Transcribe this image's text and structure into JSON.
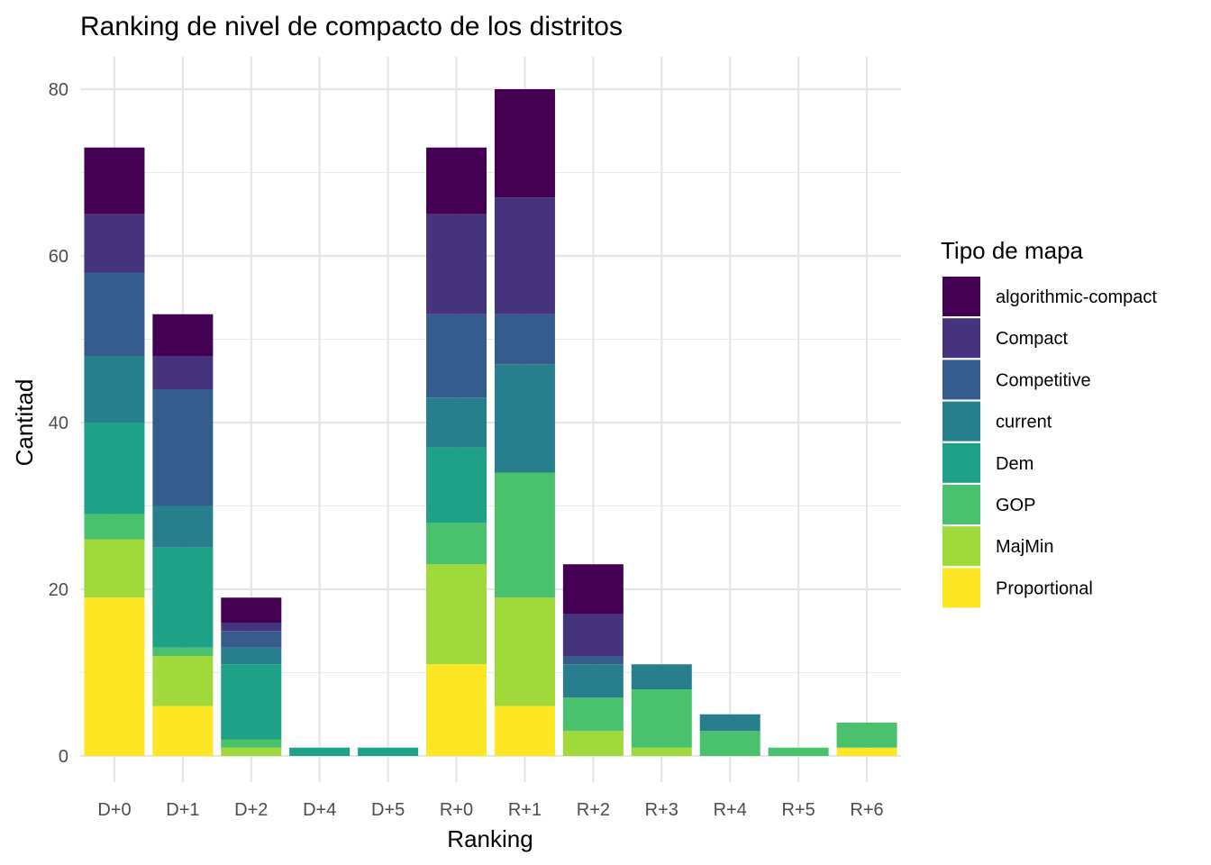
{
  "chart_data": {
    "type": "bar",
    "stacked": true,
    "title": "Ranking de nivel de compacto de los distritos",
    "xlabel": "Ranking",
    "ylabel": "Cantitad",
    "ylim": [
      0,
      84
    ],
    "yticks": [
      0,
      20,
      40,
      60,
      80
    ],
    "grid": true,
    "legend_position": "right",
    "legend_title": "Tipo de mapa",
    "categories": [
      "D+0",
      "D+1",
      "D+2",
      "D+4",
      "D+5",
      "R+0",
      "R+1",
      "R+2",
      "R+3",
      "R+4",
      "R+5",
      "R+6"
    ],
    "series": [
      {
        "name": "algorithmic-compact",
        "color": "#440154",
        "values": [
          8,
          5,
          3,
          0,
          0,
          8,
          13,
          6,
          0,
          0,
          0,
          0
        ]
      },
      {
        "name": "Compact",
        "color": "#46337E",
        "values": [
          7,
          4,
          1,
          0,
          0,
          12,
          14,
          5,
          0,
          0,
          0,
          0
        ]
      },
      {
        "name": "Competitive",
        "color": "#365C8D",
        "values": [
          10,
          14,
          2,
          0,
          0,
          10,
          6,
          1,
          0,
          0,
          0,
          0
        ]
      },
      {
        "name": "current",
        "color": "#277F8E",
        "values": [
          8,
          5,
          2,
          0,
          0,
          6,
          13,
          4,
          3,
          2,
          0,
          0
        ]
      },
      {
        "name": "Dem",
        "color": "#1FA187",
        "values": [
          11,
          12,
          9,
          1,
          1,
          9,
          0,
          0,
          0,
          0,
          0,
          0
        ]
      },
      {
        "name": "GOP",
        "color": "#4AC16D",
        "values": [
          3,
          1,
          1,
          0,
          0,
          5,
          15,
          4,
          7,
          3,
          1,
          3
        ]
      },
      {
        "name": "MajMin",
        "color": "#9FDA3A",
        "values": [
          7,
          6,
          1,
          0,
          0,
          12,
          13,
          3,
          1,
          0,
          0,
          0
        ]
      },
      {
        "name": "Proportional",
        "color": "#FDE725",
        "values": [
          19,
          6,
          0,
          0,
          0,
          11,
          6,
          0,
          0,
          0,
          0,
          1
        ]
      }
    ]
  }
}
